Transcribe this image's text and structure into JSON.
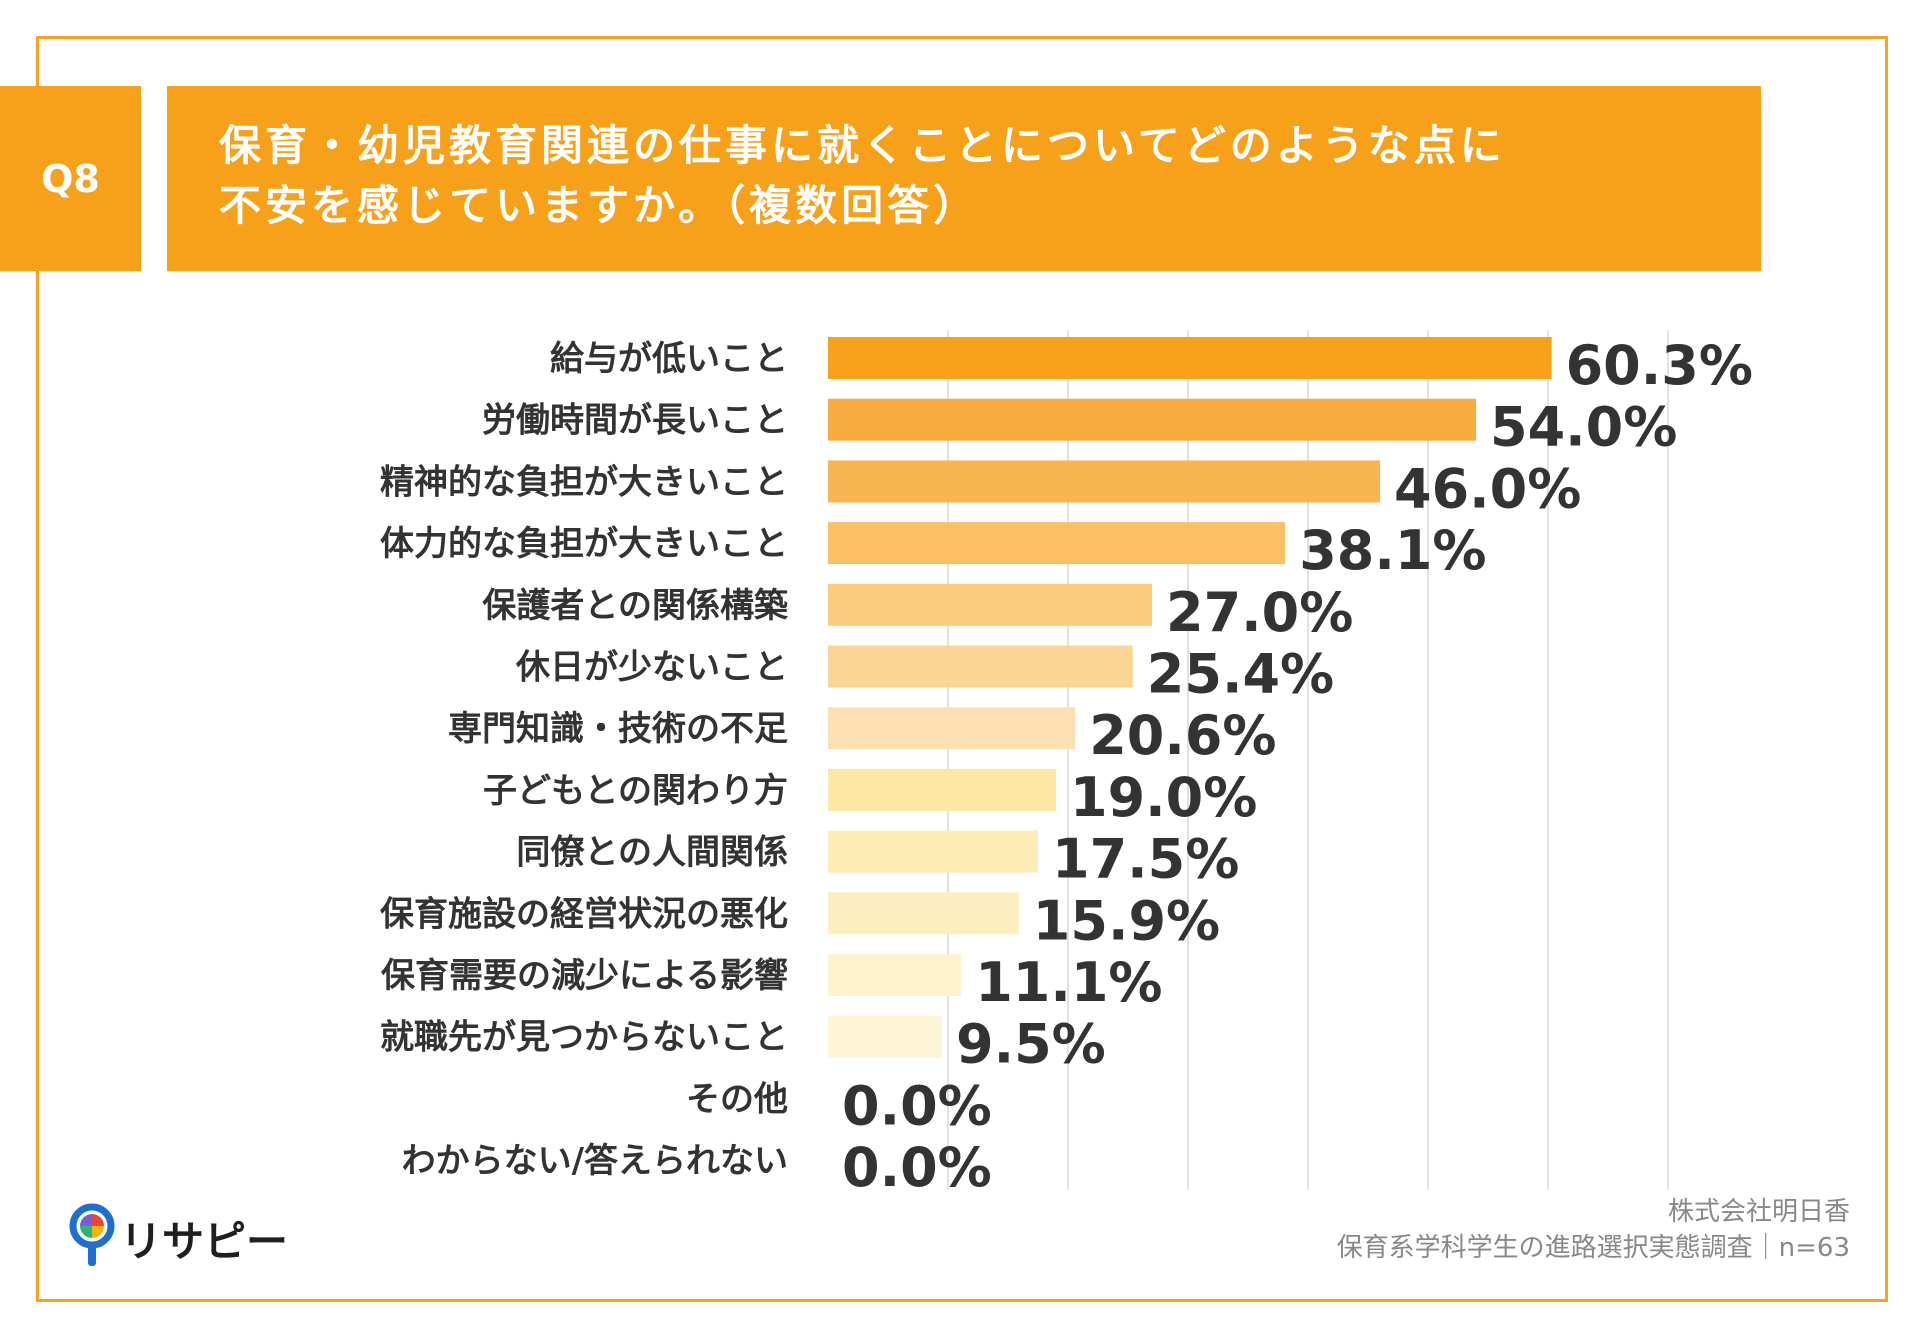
{
  "header": {
    "question_label": "Q8",
    "title_line1": "保育・幼児教育関連の仕事に就くことについてどのような点に",
    "title_line2": "不安を感じていますか。（複数回答）"
  },
  "chart_data": {
    "type": "bar",
    "orientation": "horizontal",
    "title": "保育・幼児教育関連の仕事に就くことについてどのような点に不安を感じていますか。（複数回答）",
    "xlim": [
      0,
      70
    ],
    "grid": true,
    "categories": [
      "給与が低いこと",
      "労働時間が長いこと",
      "精神的な負担が大きいこと",
      "体力的な負担が大きいこと",
      "保護者との関係構築",
      "休日が少ないこと",
      "専門知識・技術の不足",
      "子どもとの関わり方",
      "同僚との人間関係",
      "保育施設の経営状況の悪化",
      "保育需要の減少による影響",
      "就職先が見つからないこと",
      "その他",
      "わからない/答えられない"
    ],
    "values": [
      60.3,
      54.0,
      46.0,
      38.1,
      27.0,
      25.4,
      20.6,
      19.0,
      17.5,
      15.9,
      11.1,
      9.5,
      0.0,
      0.0
    ],
    "value_labels": [
      "60.3%",
      "54.0%",
      "46.0%",
      "38.1%",
      "27.0%",
      "25.4%",
      "20.6%",
      "19.0%",
      "17.5%",
      "15.9%",
      "11.1%",
      "9.5%",
      "0.0%",
      "0.0%"
    ],
    "bar_colors": [
      "#f7a11a",
      "#f8ad3e",
      "#f9b550",
      "#fac063",
      "#fbcb7e",
      "#fcd595",
      "#fde0b1",
      "#fce7a4",
      "#fdedb5",
      "#fdeec0",
      "#fef2cf",
      "#fef4d6",
      "#fff6dd",
      "#fff6dd"
    ]
  },
  "footer": {
    "company": "株式会社明日香",
    "survey": "保育系学科学生の進路選択実態調査｜n=63",
    "logo_text": "リサピー"
  },
  "colors": {
    "accent": "#f7a11a",
    "frame": "#f3a428",
    "value_text": "#333333",
    "label_text": "#333333"
  }
}
